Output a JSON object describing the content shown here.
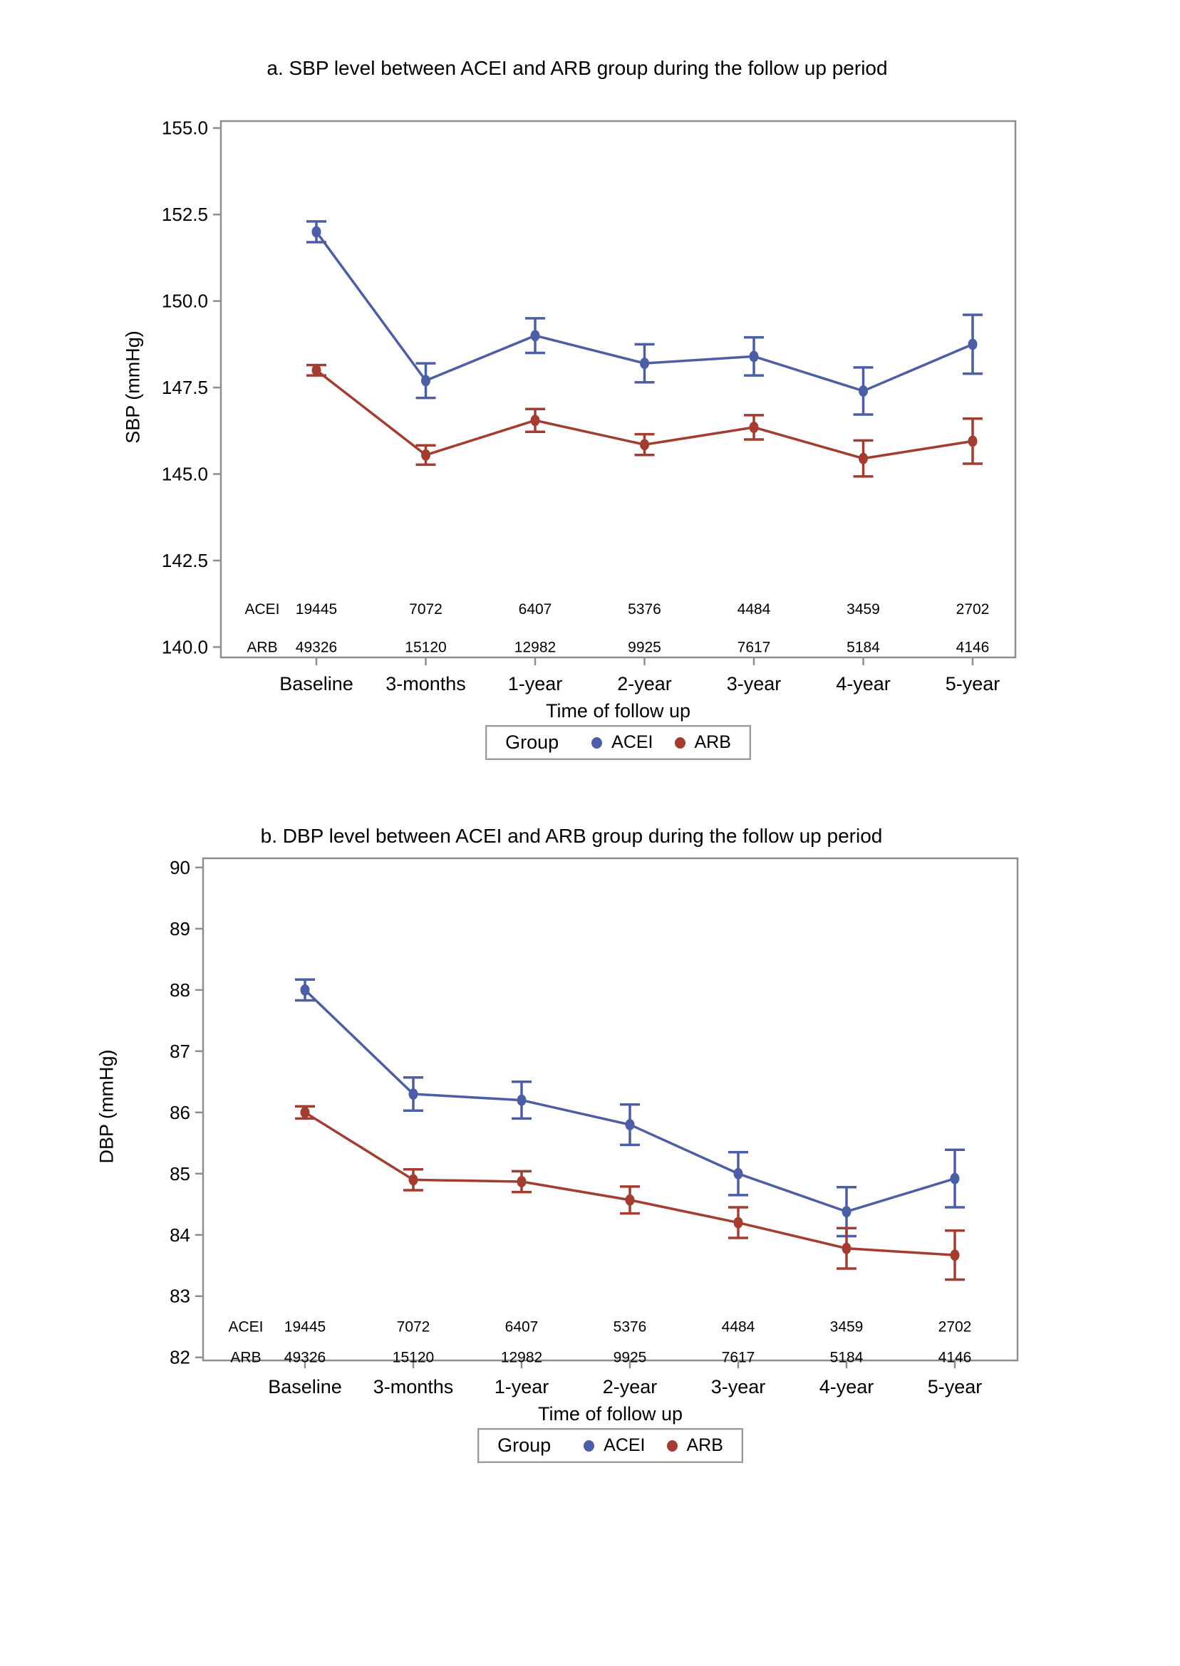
{
  "colors": {
    "acei": "#4c5ea5",
    "arb": "#a43c30",
    "axis": "#8e8e8e",
    "text": "#000000",
    "legend_border": "#9a9a9a",
    "background": "#ffffff"
  },
  "chart_data": [
    {
      "id": "sbp",
      "type": "line",
      "title": "a. SBP level between ACEI and ARB group during the follow up period",
      "ylabel": "SBP (mmHg)",
      "xlabel": "Time of follow up",
      "grid": "off",
      "legend_position": "bottom",
      "ylim": [
        140,
        155
      ],
      "categories": [
        "Baseline",
        "3-months",
        "1-year",
        "2-year",
        "3-year",
        "4-year",
        "5-year"
      ],
      "yticks": [
        {
          "v": 155.0,
          "label": "155.0"
        },
        {
          "v": 152.5,
          "label": "152.5"
        },
        {
          "v": 150.0,
          "label": "150.0"
        },
        {
          "v": 147.5,
          "label": "147.5"
        },
        {
          "v": 145.0,
          "label": "145.0"
        },
        {
          "v": 142.5,
          "label": "142.5"
        },
        {
          "v": 140.0,
          "label": "140.0"
        }
      ],
      "series": [
        {
          "name": "ACEI",
          "color_key": "acei",
          "values": [
            152.0,
            147.7,
            149.0,
            148.2,
            148.4,
            147.4,
            148.75
          ],
          "errors": [
            0.3,
            0.5,
            0.5,
            0.55,
            0.55,
            0.68,
            0.85
          ]
        },
        {
          "name": "ARB",
          "color_key": "arb",
          "values": [
            148.0,
            145.55,
            146.55,
            145.85,
            146.35,
            145.45,
            145.95
          ],
          "errors": [
            0.15,
            0.28,
            0.33,
            0.3,
            0.35,
            0.52,
            0.65
          ]
        }
      ],
      "counts": [
        {
          "label": "ACEI",
          "y_value": 141.1,
          "values": [
            "19445",
            "7072",
            "6407",
            "5376",
            "4484",
            "3459",
            "2702"
          ]
        },
        {
          "label": "ARB",
          "y_value": 140.0,
          "values": [
            "49326",
            "15120",
            "12982",
            "9925",
            "7617",
            "5184",
            "4146"
          ]
        }
      ],
      "legend": {
        "title": "Group",
        "items": [
          {
            "label": "ACEI",
            "color_key": "acei"
          },
          {
            "label": "ARB",
            "color_key": "arb"
          }
        ]
      }
    },
    {
      "id": "dbp",
      "type": "line",
      "title": "b. DBP level between ACEI and ARB group during the follow up period",
      "ylabel": "DBP (mmHg)",
      "xlabel": "Time of follow up",
      "grid": "off",
      "legend_position": "bottom",
      "ylim": [
        82,
        90
      ],
      "categories": [
        "Baseline",
        "3-months",
        "1-year",
        "2-year",
        "3-year",
        "4-year",
        "5-year"
      ],
      "yticks": [
        {
          "v": 90,
          "label": "90"
        },
        {
          "v": 89,
          "label": "89"
        },
        {
          "v": 88,
          "label": "88"
        },
        {
          "v": 87,
          "label": "87"
        },
        {
          "v": 86,
          "label": "86"
        },
        {
          "v": 85,
          "label": "85"
        },
        {
          "v": 84,
          "label": "84"
        },
        {
          "v": 83,
          "label": "83"
        },
        {
          "v": 82,
          "label": "82"
        }
      ],
      "series": [
        {
          "name": "ACEI",
          "color_key": "acei",
          "values": [
            88.0,
            86.3,
            86.2,
            85.8,
            85.0,
            84.38,
            84.92
          ],
          "errors": [
            0.17,
            0.27,
            0.3,
            0.33,
            0.35,
            0.4,
            0.47
          ]
        },
        {
          "name": "ARB",
          "color_key": "arb",
          "values": [
            86.0,
            84.9,
            84.87,
            84.57,
            84.2,
            83.78,
            83.67
          ],
          "errors": [
            0.1,
            0.17,
            0.17,
            0.22,
            0.25,
            0.33,
            0.4
          ]
        }
      ],
      "counts": [
        {
          "label": "ACEI",
          "y_value": 82.5,
          "values": [
            "19445",
            "7072",
            "6407",
            "5376",
            "4484",
            "3459",
            "2702"
          ]
        },
        {
          "label": "ARB",
          "y_value": 82.0,
          "values": [
            "49326",
            "15120",
            "12982",
            "9925",
            "7617",
            "5184",
            "4146"
          ]
        }
      ],
      "legend": {
        "title": "Group",
        "items": [
          {
            "label": "ACEI",
            "color_key": "acei"
          },
          {
            "label": "ARB",
            "color_key": "arb"
          }
        ]
      }
    }
  ]
}
